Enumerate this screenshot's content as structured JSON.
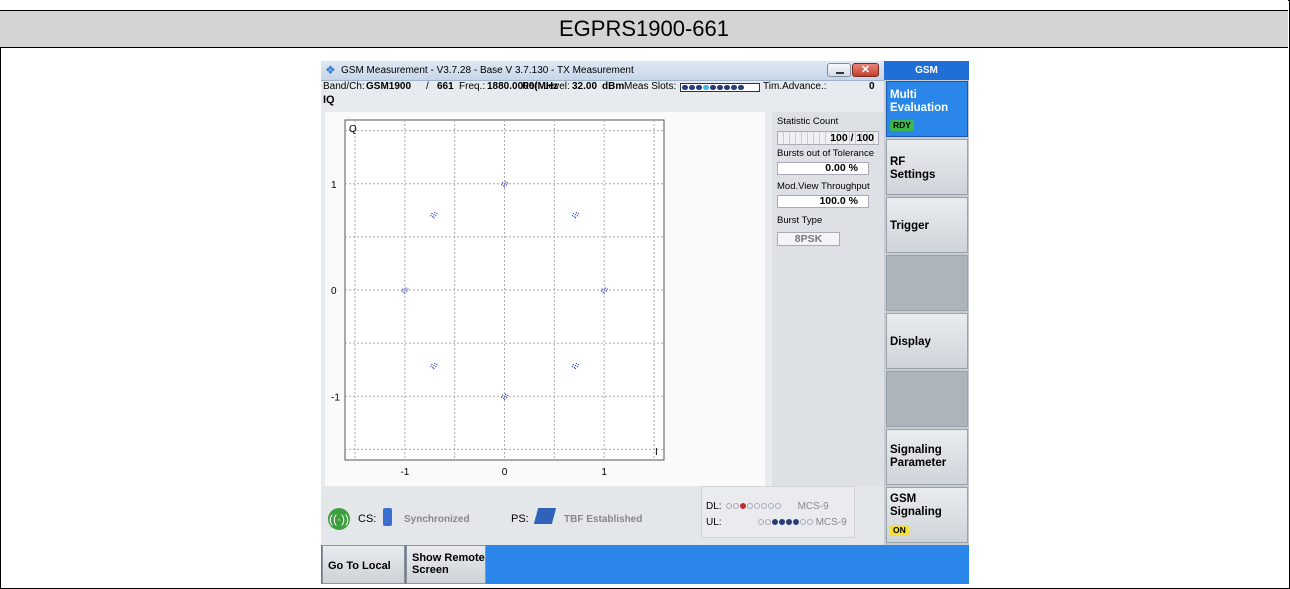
{
  "caption": "EGPRS1900-661",
  "window": {
    "title": "GSM Measurement  - V3.7.28 - Base V 3.7.130 - TX Measurement",
    "close_glyph": "✕"
  },
  "infobar": {
    "band_label": "Band/Ch:",
    "band_value": "GSM1900",
    "sep": "/",
    "channel": "661",
    "freq_label": "Freq.:",
    "freq_value": "1880.0000(MHz",
    "ref_label": "Ref. Level:",
    "ref_value": "32.00",
    "ref_unit": "dBm",
    "meas_label": "Meas Slots:",
    "tim_label": "Tim.Advance.:",
    "tim_value": "0"
  },
  "view_label": "IQ",
  "plot": {
    "corner_q": "Q",
    "corner_i": "I",
    "y_ticks": [
      "1",
      "0",
      "-1"
    ],
    "x_ticks": [
      "-1",
      "0",
      "1"
    ],
    "points": [
      {
        "i": 0,
        "q": 1
      },
      {
        "i": -0.71,
        "q": 0.71
      },
      {
        "i": 0.71,
        "q": 0.71
      },
      {
        "i": -1,
        "q": 0
      },
      {
        "i": 1,
        "q": 0
      },
      {
        "i": -0.71,
        "q": -0.71
      },
      {
        "i": 0.71,
        "q": -0.71
      },
      {
        "i": 0,
        "q": -1
      }
    ],
    "point_color": "#3a4fd0"
  },
  "results": {
    "statistic_label": "Statistic Count",
    "statistic_value": "100 / 100",
    "tolerance_label": "Bursts out of Tolerance",
    "tolerance_value": "0.00  %",
    "throughput_label": "Mod.View Throughput",
    "throughput_value": "100.0  %",
    "burst_type_label": "Burst Type",
    "burst_type_value": "8PSK"
  },
  "status": {
    "cs_label": "CS:",
    "cs_state": "Synchronized",
    "ps_label": "PS:",
    "ps_state": "TBF Established",
    "dl_label": "DL:",
    "dl_mcs": "MCS-9",
    "ul_label": "UL:",
    "ul_mcs": "MCS-9"
  },
  "softkeys": {
    "header": "GSM",
    "multi_line1": "Multi",
    "multi_line2": "Evaluation",
    "multi_tag": "RDY",
    "rf_line1": "RF",
    "rf_line2": "Settings",
    "trigger": "Trigger",
    "display": "Display",
    "sig_line1": "Signaling",
    "sig_line2": "Parameter",
    "gsmsig_line1": "GSM",
    "gsmsig_line2": "Signaling",
    "gsmsig_tag": "ON"
  },
  "bottom": {
    "go_local": "Go To Local",
    "show_remote_line1": "Show Remote",
    "show_remote_line2": "Screen"
  },
  "colors": {
    "accent": "#2a86e8",
    "rdy": "#3cb84a",
    "on": "#f3e03a"
  }
}
